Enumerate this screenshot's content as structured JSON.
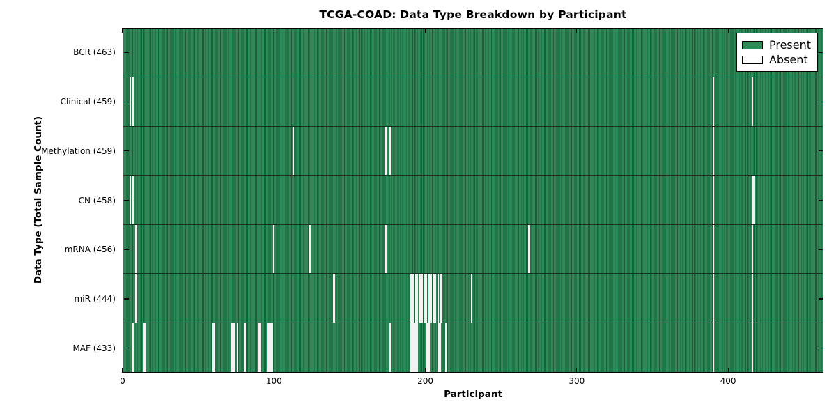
{
  "chart_data": {
    "type": "heatmap",
    "title": "TCGA-COAD: Data Type Breakdown by Participant",
    "xlabel": "Participant",
    "ylabel": "Data Type (Total Sample Count)",
    "x_range": [
      0,
      463
    ],
    "x_ticks": [
      0,
      100,
      200,
      300,
      400
    ],
    "grid": false,
    "legend_position": "upper right",
    "legend_items": [
      {
        "label": "Present",
        "color": "#2e8b57"
      },
      {
        "label": "Absent",
        "color": "#ffffff"
      }
    ],
    "colors": {
      "present_fill": "#2e8b57",
      "present_edge": "#1b5e3c",
      "absent_fill": "#f2f2f2",
      "row_divider": "#14301f",
      "axis": "#000000"
    },
    "rows": [
      {
        "name": "BCR",
        "label": "BCR (463)",
        "total": 463,
        "absent_participants": []
      },
      {
        "name": "Clinical",
        "label": "Clinical (459)",
        "total": 459,
        "absent_participants": [
          4,
          6,
          390,
          416
        ]
      },
      {
        "name": "Methylation",
        "label": "Methylation (459)",
        "total": 459,
        "absent_participants": [
          112,
          173,
          176,
          390
        ]
      },
      {
        "name": "CN",
        "label": "CN (458)",
        "total": 458,
        "absent_participants": [
          4,
          6,
          390,
          416,
          417
        ]
      },
      {
        "name": "mRNA",
        "label": "mRNA (456)",
        "total": 456,
        "absent_participants": [
          8,
          99,
          123,
          173,
          268,
          390,
          416
        ]
      },
      {
        "name": "miR",
        "label": "miR (444)",
        "total": 444,
        "absent_participants": [
          8,
          139,
          190,
          191,
          193,
          194,
          196,
          197,
          199,
          200,
          202,
          203,
          205,
          206,
          208,
          210,
          230,
          390,
          416
        ]
      },
      {
        "name": "MAF",
        "label": "MAF (433)",
        "total": 433,
        "absent_participants": [
          6,
          13,
          14,
          59,
          60,
          71,
          72,
          73,
          75,
          80,
          89,
          90,
          95,
          96,
          97,
          98,
          176,
          190,
          191,
          192,
          193,
          194,
          200,
          201,
          202,
          208,
          209,
          213,
          390,
          416
        ]
      }
    ]
  }
}
